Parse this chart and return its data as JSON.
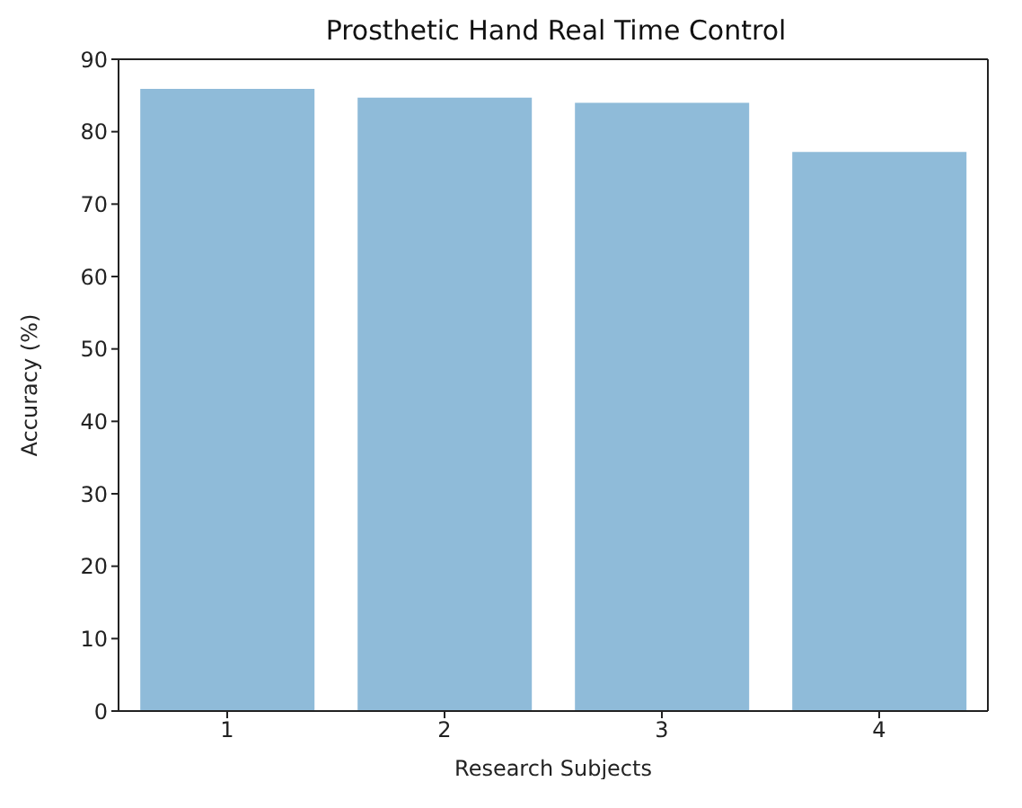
{
  "chart_data": {
    "type": "bar",
    "title": "Prosthetic Hand Real Time Control",
    "xlabel": "Research Subjects",
    "ylabel": "Accuracy (%)",
    "categories": [
      "1",
      "2",
      "3",
      "4"
    ],
    "values": [
      85.9,
      84.7,
      84.0,
      77.2
    ],
    "color": "#8fbbd9",
    "ylim": [
      0,
      90
    ],
    "yticks": [
      0,
      10,
      20,
      30,
      40,
      50,
      60,
      70,
      80,
      90
    ],
    "grid": false,
    "legend": false
  }
}
